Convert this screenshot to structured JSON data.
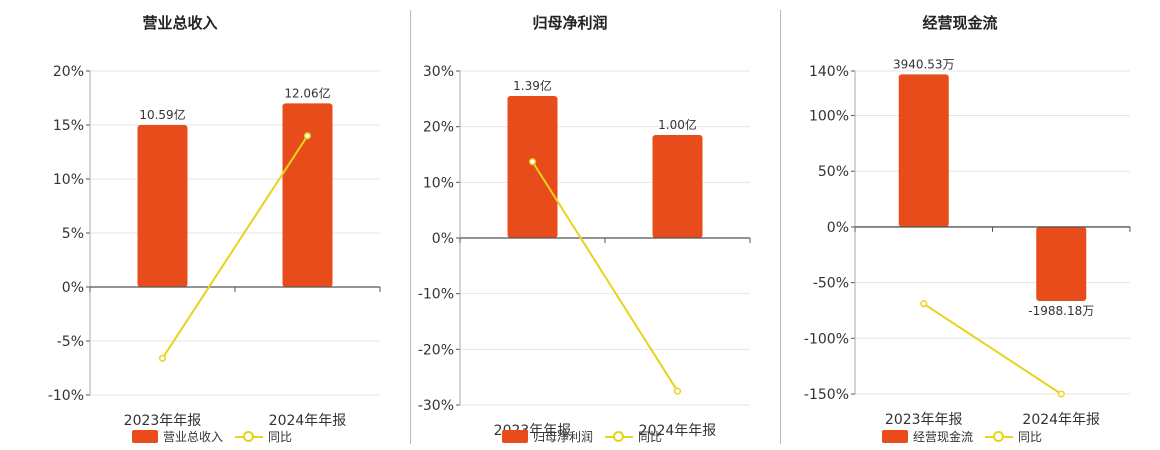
{
  "colors": {
    "bar": "#e84c1b",
    "line": "#e9d31a",
    "grid": "#e6e6e6",
    "axis": "#555555",
    "text": "#333333"
  },
  "chart_data": [
    {
      "type": "bar",
      "title": "营业总收入",
      "categories": [
        "2023年年报",
        "2024年年报"
      ],
      "bar_series": {
        "name": "营业总收入",
        "values": [
          15.0,
          17.0
        ],
        "labels": [
          "10.59亿",
          "12.06亿"
        ]
      },
      "line_series": {
        "name": "同比",
        "values": [
          -6.6,
          14.0
        ]
      },
      "ylim": [
        -10,
        20
      ],
      "yticks": [
        20,
        15,
        10,
        5,
        0,
        -5,
        -10
      ],
      "ytick_labels": [
        "20%",
        "15%",
        "10%",
        "5%",
        "0%",
        "-5%",
        "-10%"
      ],
      "grid": true
    },
    {
      "type": "bar",
      "title": "归母净利润",
      "categories": [
        "2023年年报",
        "2024年年报"
      ],
      "bar_series": {
        "name": "归母净利润",
        "values": [
          25.5,
          18.5
        ],
        "labels": [
          "1.39亿",
          "1.00亿"
        ]
      },
      "line_series": {
        "name": "同比",
        "values": [
          13.7,
          -27.5
        ]
      },
      "ylim": [
        -30,
        30
      ],
      "yticks": [
        30,
        20,
        10,
        0,
        -10,
        -20,
        -30
      ],
      "ytick_labels": [
        "30%",
        "20%",
        "10%",
        "0%",
        "-10%",
        "-20%",
        "-30%"
      ],
      "grid": true
    },
    {
      "type": "bar",
      "title": "经营现金流",
      "categories": [
        "2023年年报",
        "2024年年报"
      ],
      "bar_series": {
        "name": "经营现金流",
        "values": [
          137.0,
          -66.5
        ],
        "labels": [
          "3940.53万",
          "-1988.18万"
        ]
      },
      "line_series": {
        "name": "同比",
        "values": [
          -69.0,
          -150.0
        ]
      },
      "ylim": [
        -150,
        140
      ],
      "yticks": [
        140,
        100,
        50,
        0,
        -50,
        -100,
        -150
      ],
      "ytick_labels": [
        "140%",
        "100%",
        "50%",
        "0%",
        "-50%",
        "-100%",
        "-150%"
      ],
      "grid": true
    }
  ]
}
